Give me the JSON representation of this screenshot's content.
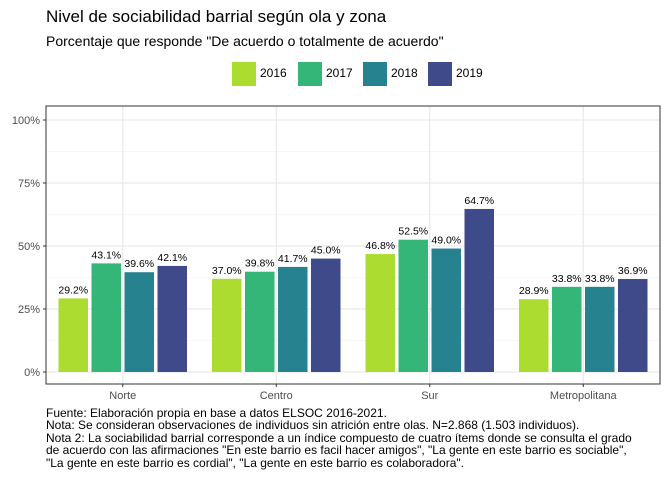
{
  "chart_data": {
    "type": "bar",
    "title": "Nivel de sociabilidad barrial según ola y zona",
    "subtitle": "Porcentaje que responde \"De acuerdo o totalmente de acuerdo\"",
    "xlabel": "",
    "ylabel": "",
    "categories": [
      "Norte",
      "Centro",
      "Sur",
      "Metropolitana"
    ],
    "series": [
      {
        "name": "2016",
        "color": "#addc30",
        "values": [
          29.2,
          37.0,
          46.8,
          28.9
        ],
        "labels": [
          "29.2%",
          "37.0%",
          "46.8%",
          "28.9%"
        ]
      },
      {
        "name": "2017",
        "color": "#34b679",
        "values": [
          43.1,
          39.8,
          52.5,
          33.8
        ],
        "labels": [
          "43.1%",
          "39.8%",
          "52.5%",
          "33.8%"
        ]
      },
      {
        "name": "2018",
        "color": "#26828e",
        "values": [
          39.6,
          41.7,
          49.0,
          33.8
        ],
        "labels": [
          "39.6%",
          "41.7%",
          "49.0%",
          "33.8%"
        ]
      },
      {
        "name": "2019",
        "color": "#3e4a89",
        "values": [
          42.1,
          45.0,
          64.7,
          36.9
        ],
        "labels": [
          "42.1%",
          "45.0%",
          "64.7%",
          "36.9%"
        ]
      }
    ],
    "ylim": [
      0,
      100
    ],
    "yticks": [
      0,
      25,
      50,
      75,
      100
    ],
    "ytick_labels": [
      "0%",
      "25%",
      "50%",
      "75%",
      "100%"
    ],
    "grid": true,
    "legend_position": "top"
  },
  "notes": [
    "Fuente: Elaboración propia en base a datos ELSOC 2016-2021.",
    "Nota: Se consideran observaciones de individuos sin atrición entre olas. N=2.868 (1.503 individuos).",
    "Nota 2: La sociabilidad barrial corresponde a un índice compuesto de cuatro ítems donde se consulta el grado",
    "de acuerdo con las afirmaciones \"En este barrio es facil hacer amigos\", \"La gente en este barrio es sociable\",",
    "\"La gente en este barrio es cordial\", \"La gente en este barrio es colaboradora\"."
  ]
}
